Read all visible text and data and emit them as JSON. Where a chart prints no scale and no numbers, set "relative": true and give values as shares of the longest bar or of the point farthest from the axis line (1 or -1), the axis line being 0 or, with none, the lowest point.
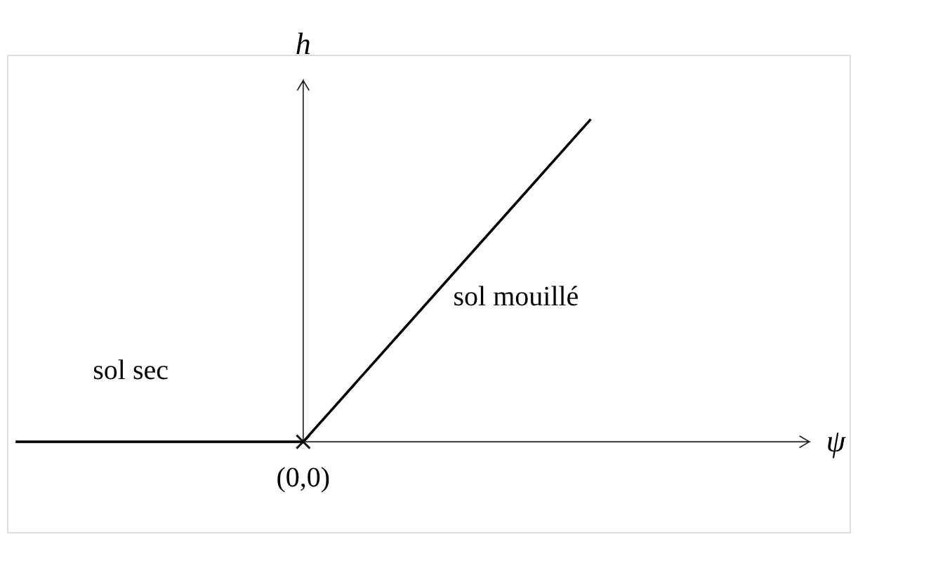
{
  "chart_data": {
    "type": "line",
    "relative": true,
    "xlabel": "ψ",
    "ylabel": "h",
    "tick_labels": false,
    "categories": [
      null,
      null,
      null
    ],
    "series": [
      {
        "color": "#000000",
        "values": [
          0,
          0,
          1
        ]
      }
    ],
    "annotations": [
      "sol sec",
      "sol mouillé",
      "(0,0)"
    ]
  }
}
